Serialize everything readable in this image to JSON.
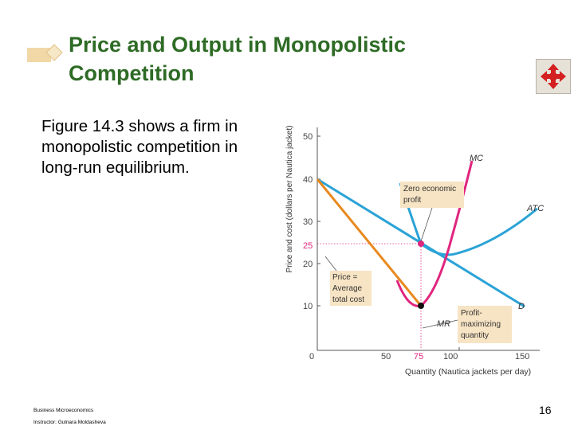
{
  "slide": {
    "title_line1": "Price and Output in Monopolistic",
    "title_line2": "Competition",
    "body_text": "Figure 14.3 shows a firm in monopolistic competition in long-run equilibrium.",
    "footer_line1": "Business Microeconomics",
    "footer_line2": "Instructor: Gulnara Moldasheva",
    "page_number": "16"
  },
  "colors": {
    "title": "#2e6b25",
    "demand": "#2aa3d6",
    "mr": "#e8891e",
    "mc": "#e0257e",
    "atc": "#2aa3d6",
    "callout": "#f7e4c4",
    "nav_icon": "#d32020"
  },
  "icons": {
    "nav": "four-way-arrows-icon",
    "title_bullet": "diamond-bullet-icon"
  },
  "figure": {
    "ylabel": "Price and cost (dollars per Nautica jacket)",
    "xlabel": "Quantity (Nautica jackets per day)",
    "y_ticks": [
      "50",
      "40",
      "30",
      "25",
      "20",
      "10"
    ],
    "x_ticks": [
      "0",
      "50",
      "75",
      "100",
      "150"
    ],
    "curve_labels": {
      "mc": "MC",
      "atc": "ATC",
      "demand": "D",
      "mr": "MR"
    },
    "callouts": {
      "zero_profit_1": "Zero economic",
      "zero_profit_2": "profit",
      "price_1": "Price =",
      "price_2": "Average",
      "price_3": "total cost",
      "quantity_1": "Profit-",
      "quantity_2": "maximizing",
      "quantity_3": "quantity"
    },
    "equilibrium": {
      "quantity": 75,
      "price": 25,
      "mr_equals_mc": 10
    },
    "curves": {
      "demand": [
        [
          0,
          40
        ],
        [
          150,
          10
        ]
      ],
      "mr": [
        [
          0,
          40
        ],
        [
          75,
          10
        ]
      ],
      "mc": [
        [
          58,
          18
        ],
        [
          75,
          10
        ],
        [
          85,
          15
        ],
        [
          95,
          30
        ],
        [
          100,
          42
        ],
        [
          104,
          48
        ]
      ],
      "atc": [
        [
          60,
          39
        ],
        [
          75,
          25
        ],
        [
          80,
          23
        ],
        [
          95,
          22
        ],
        [
          125,
          26
        ],
        [
          150,
          33
        ]
      ]
    }
  }
}
